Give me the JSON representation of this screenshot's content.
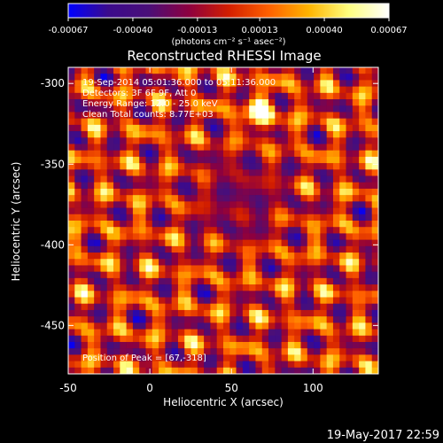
{
  "colorbar": {
    "tick_labels": [
      "-0.00067",
      "-0.00040",
      "-0.00013",
      "0.00013",
      "0.00040",
      "0.00067"
    ],
    "tick_values": [
      -0.00067,
      -0.0004,
      -0.00013,
      0.00013,
      0.0004,
      0.00067
    ],
    "range": [
      -0.00067,
      0.00067
    ],
    "units_label": "(photons cm⁻² s⁻¹ asec⁻²)",
    "colors": [
      "#0000ff",
      "#3b0b8c",
      "#4a0f78",
      "#8c0040",
      "#d21e00",
      "#ff6000",
      "#ffb400",
      "#ffff80",
      "#ffffff"
    ]
  },
  "chart_data": {
    "type": "heatmap",
    "title": "Reconstructed RHESSI Image",
    "xlabel": "Heliocentric X (arcsec)",
    "ylabel": "Heliocentric Y (arcsec)",
    "xlim": [
      -50,
      140
    ],
    "ylim": [
      -480,
      -290
    ],
    "x_ticks": [
      -50,
      0,
      50,
      100
    ],
    "x_tick_labels": [
      "-50",
      "0",
      "50",
      "100"
    ],
    "y_ticks": [
      -300,
      -350,
      -400,
      -450
    ],
    "y_tick_labels": [
      "-300",
      "-350",
      "-400",
      "-450"
    ],
    "grid": false,
    "annotations": [
      "19-Sep-2014 05:01:36.000 to 05:11:36.000",
      "Detectors: 3F 6F 9F, Att 0",
      "Energy Range: 12.0 - 25.0 keV",
      "Clean     Total counts: 8.77E+03",
      "Position of Peak = [67,-318]"
    ],
    "peak_position": [
      67,
      -318
    ]
  },
  "footer": {
    "timestamp": "19-May-2017 22:59"
  }
}
